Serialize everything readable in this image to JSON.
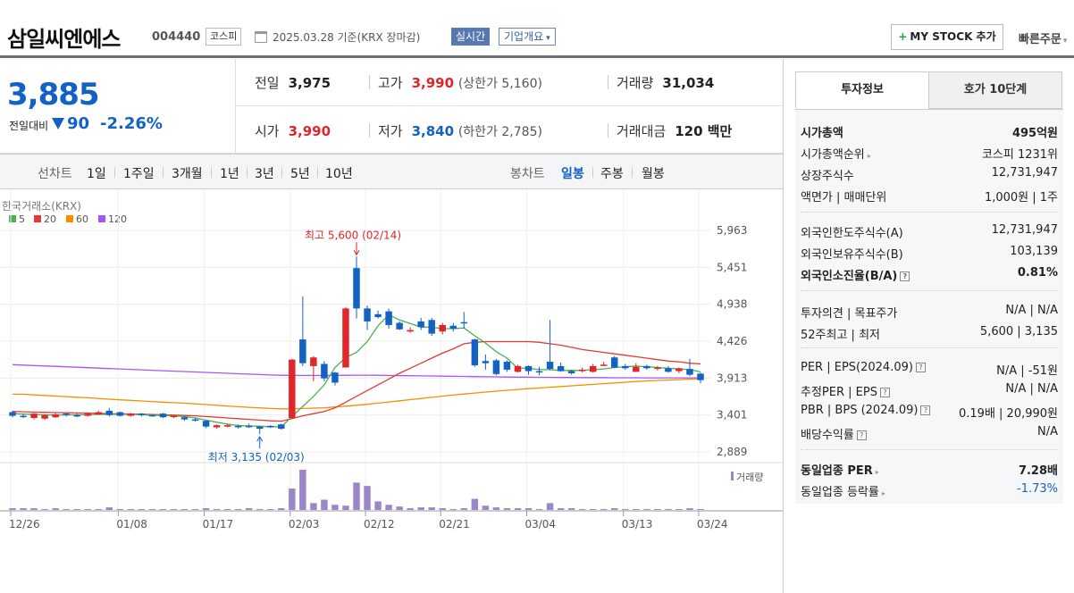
{
  "header": {
    "stock_name": "삼일씨엔에스",
    "stock_code": "004440",
    "market": "코스피",
    "date_text": "2025.03.28 기준(KRX 장마감)",
    "realtime_label": "실시간",
    "company_info_label": "기업개요",
    "mystock_label": "MY STOCK 추가",
    "quick_order_label": "빠른주문"
  },
  "price": {
    "current": "3,885",
    "compare_label": "전일대비",
    "change": "90",
    "change_pct": "-2.26%",
    "prev_label": "전일",
    "prev": "3,975",
    "open_label": "시가",
    "open": "3,990",
    "high_label": "고가",
    "high": "3,990",
    "upper_limit": "(상한가 5,160)",
    "low_label": "저가",
    "low": "3,840",
    "lower_limit": "(하한가 2,785)",
    "volume_label": "거래량",
    "volume": "31,034",
    "amount_label": "거래대금",
    "amount": "120 백만"
  },
  "period_tabs": {
    "line_title": "선차트",
    "line": [
      "1일",
      "1주일",
      "3개월",
      "1년",
      "3년",
      "5년",
      "10년"
    ],
    "candle_title": "봉차트",
    "candle": [
      "일봉",
      "주봉",
      "월봉"
    ],
    "active_candle": "일봉"
  },
  "colors": {
    "up": "#e0262a",
    "down": "#1261c4",
    "ma5": "#4caf50",
    "ma20": "#e53935",
    "ma60": "#fb8c00",
    "ma120": "#a855f7"
  },
  "chart_data": {
    "type": "candlestick",
    "source_label": "한국거래소(KRX)",
    "legend": [
      "5",
      "20",
      "60",
      "120"
    ],
    "y_ticks": [
      "5,963",
      "5,451",
      "4,938",
      "4,426",
      "3,913",
      "3,401",
      "2,889"
    ],
    "ylim": [
      2889,
      5963
    ],
    "x_ticks": [
      "12/26",
      "01/08",
      "01/17",
      "02/03",
      "02/12",
      "02/21",
      "03/04",
      "03/13",
      "03/24"
    ],
    "high_annotation": "최고 5,600 (02/14)",
    "low_annotation": "최저 3,135 (02/03)",
    "volume_label": "거래량",
    "candles": [
      {
        "o": 3440,
        "c": 3390,
        "h": 3460,
        "l": 3370
      },
      {
        "o": 3390,
        "c": 3380,
        "h": 3420,
        "l": 3360
      },
      {
        "o": 3360,
        "c": 3420,
        "h": 3430,
        "l": 3340
      },
      {
        "o": 3350,
        "c": 3400,
        "h": 3410,
        "l": 3330
      },
      {
        "o": 3370,
        "c": 3410,
        "h": 3430,
        "l": 3360
      },
      {
        "o": 3420,
        "c": 3400,
        "h": 3430,
        "l": 3380
      },
      {
        "o": 3400,
        "c": 3380,
        "h": 3420,
        "l": 3370
      },
      {
        "o": 3390,
        "c": 3420,
        "h": 3430,
        "l": 3380
      },
      {
        "o": 3410,
        "c": 3440,
        "h": 3460,
        "l": 3400
      },
      {
        "o": 3460,
        "c": 3400,
        "h": 3500,
        "l": 3380
      },
      {
        "o": 3440,
        "c": 3390,
        "h": 3450,
        "l": 3380
      },
      {
        "o": 3390,
        "c": 3420,
        "h": 3430,
        "l": 3380
      },
      {
        "o": 3420,
        "c": 3400,
        "h": 3430,
        "l": 3380
      },
      {
        "o": 3400,
        "c": 3390,
        "h": 3410,
        "l": 3380
      },
      {
        "o": 3420,
        "c": 3370,
        "h": 3430,
        "l": 3360
      },
      {
        "o": 3380,
        "c": 3390,
        "h": 3400,
        "l": 3360
      },
      {
        "o": 3370,
        "c": 3340,
        "h": 3380,
        "l": 3320
      },
      {
        "o": 3340,
        "c": 3330,
        "h": 3360,
        "l": 3310
      },
      {
        "o": 3320,
        "c": 3240,
        "h": 3330,
        "l": 3220
      },
      {
        "o": 3230,
        "c": 3260,
        "h": 3270,
        "l": 3210
      },
      {
        "o": 3240,
        "c": 3260,
        "h": 3280,
        "l": 3230
      },
      {
        "o": 3250,
        "c": 3230,
        "h": 3270,
        "l": 3210
      },
      {
        "o": 3250,
        "c": 3240,
        "h": 3280,
        "l": 3220
      },
      {
        "o": 3240,
        "c": 3210,
        "h": 3250,
        "l": 3135
      },
      {
        "o": 3250,
        "c": 3230,
        "h": 3260,
        "l": 3220
      },
      {
        "o": 3270,
        "c": 3210,
        "h": 3280,
        "l": 3200
      },
      {
        "o": 3360,
        "c": 4170,
        "h": 4180,
        "l": 3350
      },
      {
        "o": 4450,
        "c": 4120,
        "h": 5050,
        "l": 4080
      },
      {
        "o": 4080,
        "c": 4200,
        "h": 4220,
        "l": 3870
      },
      {
        "o": 4110,
        "c": 3910,
        "h": 4150,
        "l": 3870
      },
      {
        "o": 3990,
        "c": 3850,
        "h": 4000,
        "l": 3810
      },
      {
        "o": 4060,
        "c": 4880,
        "h": 4900,
        "l": 4060
      },
      {
        "o": 5440,
        "c": 4880,
        "h": 5600,
        "l": 4740
      },
      {
        "o": 4880,
        "c": 4700,
        "h": 4920,
        "l": 4580
      },
      {
        "o": 4800,
        "c": 4760,
        "h": 4850,
        "l": 4740
      },
      {
        "o": 4840,
        "c": 4650,
        "h": 4880,
        "l": 4600
      },
      {
        "o": 4680,
        "c": 4590,
        "h": 4700,
        "l": 4580
      },
      {
        "o": 4560,
        "c": 4580,
        "h": 4620,
        "l": 4540
      },
      {
        "o": 4700,
        "c": 4620,
        "h": 4750,
        "l": 4580
      },
      {
        "o": 4720,
        "c": 4530,
        "h": 4750,
        "l": 4500
      },
      {
        "o": 4560,
        "c": 4650,
        "h": 4680,
        "l": 4520
      },
      {
        "o": 4640,
        "c": 4600,
        "h": 4680,
        "l": 4560
      },
      {
        "o": 4690,
        "c": 4680,
        "h": 4830,
        "l": 4600
      },
      {
        "o": 4450,
        "c": 4090,
        "h": 4460,
        "l": 4070
      },
      {
        "o": 4150,
        "c": 4120,
        "h": 4240,
        "l": 4030
      },
      {
        "o": 4160,
        "c": 3970,
        "h": 4180,
        "l": 3950
      },
      {
        "o": 4140,
        "c": 4030,
        "h": 4160,
        "l": 4000
      },
      {
        "o": 4000,
        "c": 4080,
        "h": 4100,
        "l": 3990
      },
      {
        "o": 4080,
        "c": 4010,
        "h": 4090,
        "l": 3960
      },
      {
        "o": 4010,
        "c": 4000,
        "h": 4070,
        "l": 3950
      },
      {
        "o": 4140,
        "c": 4040,
        "h": 4720,
        "l": 4020
      },
      {
        "o": 4080,
        "c": 4010,
        "h": 4130,
        "l": 4000
      },
      {
        "o": 4010,
        "c": 3980,
        "h": 4030,
        "l": 3960
      },
      {
        "o": 4010,
        "c": 4030,
        "h": 4060,
        "l": 3990
      },
      {
        "o": 4000,
        "c": 4080,
        "h": 4110,
        "l": 3990
      },
      {
        "o": 4090,
        "c": 4100,
        "h": 4140,
        "l": 4080
      },
      {
        "o": 4200,
        "c": 4060,
        "h": 4220,
        "l": 4050
      },
      {
        "o": 4080,
        "c": 4050,
        "h": 4110,
        "l": 4030
      },
      {
        "o": 4000,
        "c": 4070,
        "h": 4120,
        "l": 4000
      },
      {
        "o": 4080,
        "c": 4050,
        "h": 4100,
        "l": 4030
      },
      {
        "o": 4050,
        "c": 4060,
        "h": 4080,
        "l": 4020
      },
      {
        "o": 4050,
        "c": 4000,
        "h": 4080,
        "l": 3990
      },
      {
        "o": 4010,
        "c": 4050,
        "h": 4060,
        "l": 3980
      },
      {
        "o": 4040,
        "c": 3960,
        "h": 4180,
        "l": 3940
      },
      {
        "o": 3975,
        "c": 3885,
        "h": 3990,
        "l": 3840
      }
    ],
    "volume": [
      2,
      2,
      2,
      1,
      2,
      1,
      1,
      1,
      1,
      3,
      1,
      1,
      1,
      1,
      1,
      1,
      1,
      1,
      2,
      1,
      1,
      1,
      2,
      1,
      1,
      2,
      25,
      47,
      8,
      12,
      6,
      5,
      32,
      28,
      10,
      6,
      4,
      2,
      3,
      3,
      2,
      1,
      2,
      13,
      5,
      3,
      2,
      2,
      2,
      1,
      8,
      2,
      2,
      1,
      1,
      1,
      2,
      1,
      1,
      1,
      1,
      1,
      1,
      2,
      1
    ],
    "ma5": [
      3420,
      3415,
      3410,
      3405,
      3400,
      3402,
      3405,
      3405,
      3410,
      3410,
      3410,
      3408,
      3405,
      3400,
      3395,
      3390,
      3380,
      3360,
      3330,
      3300,
      3275,
      3255,
      3250,
      3245,
      3240,
      3235,
      3380,
      3520,
      3660,
      3820,
      4060,
      4200,
      4270,
      4420,
      4640,
      4790,
      4720,
      4670,
      4620,
      4620,
      4600,
      4600,
      4610,
      4500,
      4400,
      4280,
      4190,
      4050,
      4050,
      4030,
      4030,
      4020,
      4020,
      4020,
      4030,
      4040,
      4060,
      4070,
      4080,
      4070,
      4060,
      4050,
      4040,
      4030,
      4000
    ],
    "ma20": [
      3450,
      3445,
      3440,
      3438,
      3435,
      3432,
      3430,
      3428,
      3425,
      3420,
      3418,
      3415,
      3412,
      3408,
      3405,
      3400,
      3395,
      3390,
      3380,
      3370,
      3360,
      3350,
      3340,
      3330,
      3320,
      3315,
      3350,
      3390,
      3420,
      3450,
      3500,
      3580,
      3660,
      3740,
      3820,
      3900,
      3980,
      4050,
      4120,
      4190,
      4260,
      4320,
      4390,
      4410,
      4420,
      4420,
      4420,
      4420,
      4420,
      4410,
      4390,
      4370,
      4340,
      4310,
      4290,
      4270,
      4250,
      4230,
      4210,
      4190,
      4170,
      4150,
      4140,
      4120,
      4110
    ],
    "ma60": [
      3690,
      3688,
      3680,
      3672,
      3664,
      3656,
      3648,
      3640,
      3630,
      3620,
      3612,
      3604,
      3596,
      3588,
      3580,
      3572,
      3564,
      3556,
      3546,
      3536,
      3526,
      3516,
      3508,
      3500,
      3492,
      3486,
      3488,
      3492,
      3496,
      3500,
      3512,
      3524,
      3536,
      3550,
      3566,
      3582,
      3598,
      3614,
      3630,
      3646,
      3662,
      3678,
      3692,
      3706,
      3720,
      3732,
      3744,
      3756,
      3766,
      3776,
      3786,
      3796,
      3806,
      3816,
      3826,
      3836,
      3846,
      3856,
      3866,
      3874,
      3880,
      3886,
      3892,
      3898,
      3904
    ],
    "ma120": [
      4100,
      4094,
      4088,
      4082,
      4076,
      4070,
      4064,
      4058,
      4052,
      4046,
      4040,
      4034,
      4028,
      4022,
      4016,
      4010,
      4004,
      3998,
      3992,
      3986,
      3980,
      3974,
      3968,
      3962,
      3956,
      3952,
      3950,
      3950,
      3950,
      3950,
      3950,
      3952,
      3954,
      3954,
      3952,
      3950,
      3948,
      3946,
      3944,
      3942,
      3940,
      3938,
      3936,
      3934,
      3932,
      3930,
      3928,
      3926,
      3926,
      3924,
      3924,
      3922,
      3922,
      3920,
      3920,
      3920,
      3918,
      3918,
      3918,
      3916,
      3916,
      3916,
      3916,
      3916,
      3916
    ]
  },
  "invest_panel": {
    "tabs": [
      "투자정보",
      "호가 10단계"
    ],
    "rows": [
      {
        "k": "시가총액",
        "v": "495억원"
      },
      {
        "k": "시가총액순위",
        "v": "코스피 1231위"
      },
      {
        "k": "상장주식수",
        "v": "12,731,947"
      },
      {
        "k": "액면가 | 매매단위",
        "v": "1,000원 | 1주"
      },
      {
        "k": "외국인한도주식수(A)",
        "v": "12,731,947"
      },
      {
        "k": "외국인보유주식수(B)",
        "v": "103,139"
      },
      {
        "k": "외국인소진율(B/A)",
        "v": "0.81%"
      },
      {
        "k": "투자의견 | 목표주가",
        "v": "N/A | N/A"
      },
      {
        "k": "52주최고 | 최저",
        "v": "5,600 | 3,135"
      },
      {
        "k": "PER | EPS(2024.09)",
        "v": "N/A | -51원"
      },
      {
        "k": "추정PER | EPS",
        "v": "N/A | N/A"
      },
      {
        "k": "PBR | BPS (2024.09)",
        "v": "0.19배 | 20,990원"
      },
      {
        "k": "배당수익률",
        "v": "N/A"
      },
      {
        "k": "동일업종 PER",
        "v": "7.28배"
      },
      {
        "k": "동일업종 등락률",
        "v": "-1.73%"
      }
    ]
  }
}
